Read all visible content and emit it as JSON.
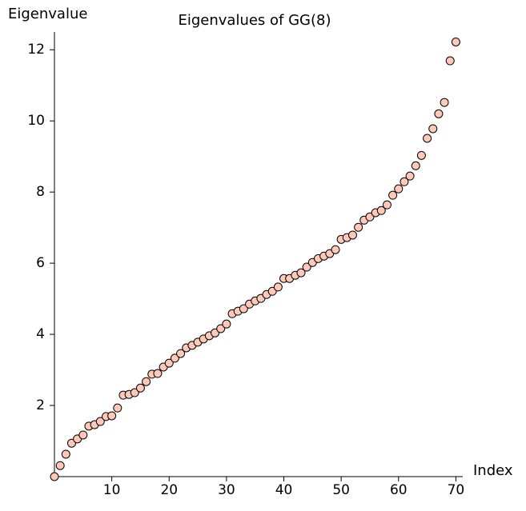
{
  "chart_data": {
    "type": "scatter",
    "title": "Eigenvalues of GG(8)",
    "xlabel": "Index",
    "ylabel": "Eigenvalue",
    "x": [
      0,
      1,
      2,
      3,
      4,
      5,
      6,
      7,
      8,
      9,
      10,
      11,
      12,
      13,
      14,
      15,
      16,
      17,
      18,
      19,
      20,
      21,
      22,
      23,
      24,
      25,
      26,
      27,
      28,
      29,
      30,
      31,
      32,
      33,
      34,
      35,
      36,
      37,
      38,
      39,
      40,
      41,
      42,
      43,
      44,
      45,
      46,
      47,
      48,
      49,
      50,
      51,
      52,
      53,
      54,
      55,
      56,
      57,
      58,
      59,
      60,
      61,
      62,
      63,
      64,
      65,
      66,
      67,
      68,
      69,
      70
    ],
    "series": [
      {
        "color": "#ffc9b9",
        "values": [
          0,
          0.31,
          0.63,
          0.94,
          1.06,
          1.17,
          1.42,
          1.46,
          1.55,
          1.69,
          1.71,
          1.93,
          2.29,
          2.31,
          2.36,
          2.49,
          2.67,
          2.88,
          2.9,
          3.08,
          3.19,
          3.33,
          3.46,
          3.62,
          3.69,
          3.78,
          3.87,
          3.96,
          4.04,
          4.16,
          4.29,
          4.58,
          4.65,
          4.72,
          4.85,
          4.94,
          5.01,
          5.12,
          5.21,
          5.33,
          5.57,
          5.57,
          5.66,
          5.73,
          5.89,
          6.02,
          6.13,
          6.2,
          6.27,
          6.38,
          6.67,
          6.72,
          6.79,
          7.01,
          7.21,
          7.3,
          7.42,
          7.48,
          7.64,
          7.91,
          8.09,
          8.29,
          8.45,
          8.74,
          9.03,
          9.51,
          9.78,
          10.2,
          10.52,
          11.69,
          12.22
        ]
      }
    ],
    "xlim": [
      0,
      71.2
    ],
    "ylim": [
      0,
      12.5
    ],
    "xticks": [
      10,
      20,
      30,
      40,
      50,
      60,
      70
    ],
    "yticks": [
      2,
      4,
      6,
      8,
      10,
      12
    ]
  }
}
